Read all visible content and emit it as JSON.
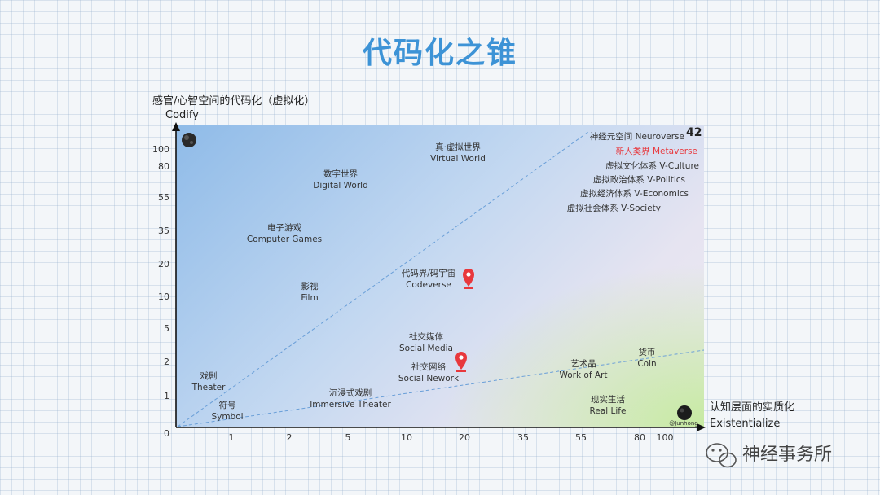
{
  "title": "代码化之锥",
  "y_axis": {
    "title": "感官/心智空间的代码化（虚拟化）",
    "subtitle": "Codify",
    "ticks": [
      "100",
      "80",
      "55",
      "35",
      "20",
      "10",
      "5",
      "2",
      "1",
      "0"
    ]
  },
  "x_axis": {
    "title": "认知层面的实质化",
    "subtitle": "Existentialize",
    "ticks": [
      "1",
      "2",
      "5",
      "10",
      "20",
      "35",
      "55",
      "80",
      "100"
    ]
  },
  "nodes": [
    {
      "zh": "真·虚拟世界",
      "en": "Virtual World"
    },
    {
      "zh": "数字世界",
      "en": "Digital World"
    },
    {
      "zh": "电子游戏",
      "en": "Computer Games"
    },
    {
      "zh": "影视",
      "en": "Film"
    },
    {
      "zh": "代码界/码宇宙",
      "en": "Codeverse"
    },
    {
      "zh": "社交媒体",
      "en": "Social Media"
    },
    {
      "zh": "社交网络",
      "en": "Social Nework"
    },
    {
      "zh": "戏剧",
      "en": "Theater"
    },
    {
      "zh": "符号",
      "en": "Symbol"
    },
    {
      "zh": "沉浸式戏剧",
      "en": "Immersive Theater"
    },
    {
      "zh": "艺术品",
      "en": "Work of Art"
    },
    {
      "zh": "货币",
      "en": "Coin"
    },
    {
      "zh": "现实生活",
      "en": "Real Life"
    }
  ],
  "top_right_list": [
    "神经元空间 Neuroverse",
    "新人类界 Metaverse",
    "虚拟文化体系 V-Culture",
    "虚拟政治体系 V-Politics",
    "虚拟经济体系 V-Economics",
    "虚拟社会体系 V-Society"
  ],
  "badge": "42",
  "corner_icon_caption": "@Junhong",
  "watermark": "神经事务所",
  "colors": {
    "title": "#3d93d6",
    "highlight": "#e8383d",
    "pin": "#e8383d",
    "guide": "#6a9fd8"
  },
  "icons": {
    "pin": "map-pin-icon",
    "top_left": "dark-globe-icon",
    "bottom_right": "dark-globe-icon",
    "watermark": "wechat-icon"
  }
}
